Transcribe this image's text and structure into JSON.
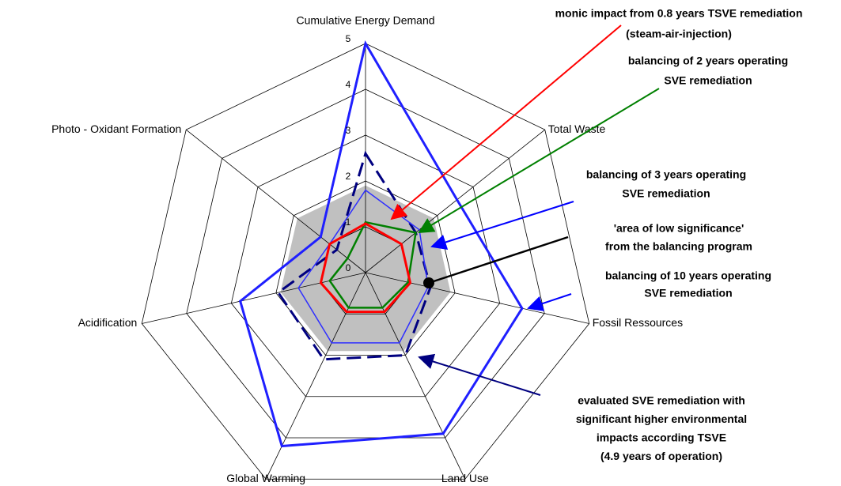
{
  "chart_data": {
    "type": "radar",
    "categories": [
      "Cumulative Energy Demand",
      "Total Waste",
      "Fossil Ressources",
      "Land Use",
      "Global Warming",
      "Acidification",
      "Photo - Oxidant Formation"
    ],
    "ylim": [
      0,
      5
    ],
    "yticks": [
      0,
      1,
      2,
      3,
      4,
      5
    ],
    "grid": true,
    "area": {
      "color": "#c0c0c0",
      "values": [
        1.9,
        1.9,
        1.9,
        1.9,
        1.9,
        1.9,
        1.9
      ]
    },
    "series": [
      {
        "color": "#1f1fff",
        "width": 3,
        "dash": false,
        "values": [
          5,
          2.55,
          3.5,
          3.9,
          4.2,
          2.8,
          1.25
        ]
      },
      {
        "color": "#000080",
        "width": 3,
        "dash": true,
        "values": [
          2.6,
          1.4,
          1.45,
          2.0,
          2.1,
          1.95,
          0.8
        ]
      },
      {
        "color": "#2f2fff",
        "width": 1.5,
        "dash": false,
        "values": [
          1.8,
          1.5,
          1.4,
          1.7,
          1.7,
          1.5,
          1.0
        ]
      },
      {
        "color": "#008000",
        "width": 2.5,
        "dash": false,
        "values": [
          1.1,
          1.4,
          0.95,
          0.85,
          0.85,
          0.8,
          0.5
        ]
      },
      {
        "color": "#ff0000",
        "width": 3,
        "dash": false,
        "values": [
          1.07,
          1.0,
          1.0,
          0.95,
          0.95,
          1.0,
          1.0
        ]
      }
    ],
    "annotations": [
      {
        "color": "#ff0000",
        "lines": [
          "monic impact from 0.8 years TSVE remediation",
          "(steam-air-injection)"
        ]
      },
      {
        "color": "#008000",
        "lines": [
          "balancing of 2 years operating",
          "SVE remediation"
        ]
      },
      {
        "color": "#0000ff",
        "lines": [
          "balancing of  3 years operating",
          "SVE remediation"
        ]
      },
      {
        "color": "#a0a0a0",
        "lines": [
          "'area of low significance'",
          "from the balancing program"
        ]
      },
      {
        "color": "#0000ff",
        "lines": [
          "balancing of 10 years operating",
          "SVE remediation"
        ]
      },
      {
        "color": "#000080",
        "lines": [
          "evaluated SVE remediation with",
          "significant higher environmental",
          "impacts according TSVE",
          "(4.9 years of operation)"
        ]
      }
    ]
  }
}
